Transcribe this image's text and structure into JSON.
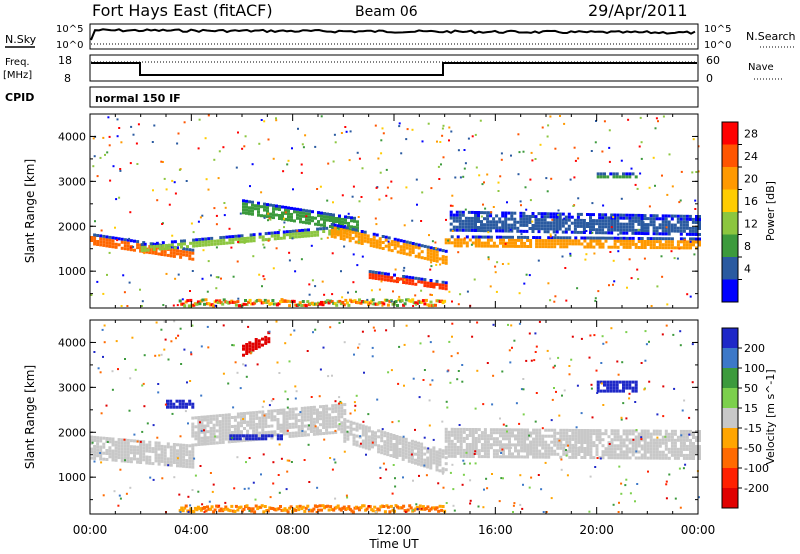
{
  "header": {
    "title": "Fort Hays East (fitACF)",
    "beam": "Beam 06",
    "date": "29/Apr/2011"
  },
  "status_panels": {
    "nsky_label": "N.Sky",
    "nsearch_label": "N.Search",
    "noise_ticks": [
      "10^5",
      "10^0"
    ],
    "noise_ticks_right": [
      "10^5",
      "10^0"
    ],
    "freq_label_1": "Freq.",
    "freq_label_2": "[MHz]",
    "freq_ticks": [
      "18",
      "8"
    ],
    "nave_label": "Nave",
    "nave_ticks": [
      "60",
      "0"
    ],
    "cpid_label": "CPID",
    "cpid_value": "normal 150 IF"
  },
  "chart_data": [
    {
      "type": "heatmap",
      "quantity": "power",
      "ylabel": "Slant Range [km]",
      "ylim": [
        180,
        4500
      ],
      "yticks": [
        "4000",
        "3000",
        "2000",
        "1000"
      ],
      "xlim_hours": [
        0,
        24
      ],
      "colorbar_label": "Power [dB]",
      "colorbar_ticks": [
        "28",
        "24",
        "20",
        "16",
        "12",
        "8",
        "4"
      ],
      "colorbar_colors": [
        "#ff0000",
        "#ff5500",
        "#ff9900",
        "#ffcc00",
        "#8cc63f",
        "#3c9a3c",
        "#2a5aa0",
        "#0000ff"
      ],
      "bands": [
        {
          "t0": 0.0,
          "t1": 4.0,
          "r0": 1700,
          "r1": 1350,
          "w": 300,
          "color": "#ff6600"
        },
        {
          "t0": 2.0,
          "t1": 10.0,
          "r0": 1500,
          "r1": 1900,
          "w": 250,
          "color": "#8cc63f"
        },
        {
          "t0": 6.0,
          "t1": 10.5,
          "r0": 2400,
          "r1": 2000,
          "w": 400,
          "color": "#3c9a3c"
        },
        {
          "t0": 9.5,
          "t1": 14.0,
          "r0": 1900,
          "r1": 1300,
          "w": 350,
          "color": "#ff9900"
        },
        {
          "t0": 11.0,
          "t1": 14.0,
          "r0": 900,
          "r1": 650,
          "w": 250,
          "color": "#ff3300"
        },
        {
          "t0": 14.0,
          "t1": 24.0,
          "r0": 1650,
          "r1": 1600,
          "w": 300,
          "color": "#ff9900"
        },
        {
          "t0": 14.2,
          "t1": 24.0,
          "r0": 2100,
          "r1": 2000,
          "w": 500,
          "color": "#2a5aa0"
        },
        {
          "t0": 20.0,
          "t1": 21.5,
          "r0": 3100,
          "r1": 3100,
          "w": 200,
          "color": "#3c9a3c"
        }
      ]
    },
    {
      "type": "heatmap",
      "quantity": "velocity",
      "ylabel": "Slant Range [km]",
      "xlabel": "Time UT",
      "ylim": [
        180,
        4500
      ],
      "yticks": [
        "4000",
        "3000",
        "2000",
        "1000"
      ],
      "xlim_hours": [
        0,
        24
      ],
      "xticks": [
        "00:00",
        "04:00",
        "08:00",
        "12:00",
        "16:00",
        "20:00",
        "00:00"
      ],
      "colorbar_label": "Velocity [m s^-1]",
      "colorbar_ticks": [
        "200",
        "100",
        "50",
        "15",
        "-15",
        "-50",
        "-100",
        "-200"
      ],
      "colorbar_colors": [
        "#1e28c8",
        "#3c78c8",
        "#3c9a3c",
        "#7cd04c",
        "#c8c8c8",
        "#ffa500",
        "#ff6a00",
        "#ff2000",
        "#e00000"
      ],
      "bands": [
        {
          "t0": 0.0,
          "t1": 4.0,
          "r0": 1650,
          "r1": 1450,
          "w": 550,
          "color": "#c8c8c8"
        },
        {
          "t0": 4.0,
          "t1": 10.0,
          "r0": 2000,
          "r1": 2300,
          "w": 700,
          "color": "#c8c8c8"
        },
        {
          "t0": 5.5,
          "t1": 7.5,
          "r0": 1880,
          "r1": 1880,
          "w": 150,
          "color": "#1e28c8"
        },
        {
          "t0": 10.0,
          "t1": 14.0,
          "r0": 2000,
          "r1": 1300,
          "w": 600,
          "color": "#c8c8c8"
        },
        {
          "t0": 14.0,
          "t1": 24.0,
          "r0": 1750,
          "r1": 1700,
          "w": 700,
          "color": "#c8c8c8"
        },
        {
          "t0": 20.0,
          "t1": 21.5,
          "r0": 3000,
          "r1": 3000,
          "w": 300,
          "color": "#1e28c8"
        },
        {
          "t0": 6.0,
          "t1": 7.0,
          "r0": 3800,
          "r1": 4100,
          "w": 300,
          "color": "#e00000"
        },
        {
          "t0": 3.0,
          "t1": 4.0,
          "r0": 2600,
          "r1": 2600,
          "w": 250,
          "color": "#1e28c8"
        }
      ]
    }
  ]
}
